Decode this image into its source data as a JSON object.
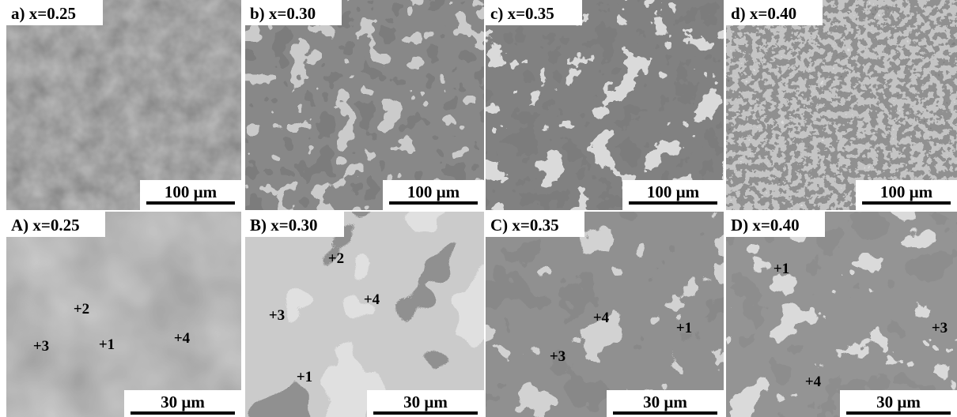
{
  "panels": [
    {
      "label": "a) x=0.25",
      "scale": "100 µm"
    },
    {
      "label": "b) x=0.30",
      "scale": "100 µm"
    },
    {
      "label": "c) x=0.35",
      "scale": "100 µm"
    },
    {
      "label": "d) x=0.40",
      "scale": "100 µm"
    },
    {
      "label": "A) x=0.25",
      "scale": "30 µm",
      "points": [
        "+1",
        "+2",
        "+3",
        "+4"
      ]
    },
    {
      "label": "B) x=0.30",
      "scale": "30 µm",
      "points": [
        "+1",
        "+2",
        "+3",
        "+4"
      ]
    },
    {
      "label": "C) x=0.35",
      "scale": "30 µm",
      "points": [
        "+1",
        "+3",
        "+4"
      ]
    },
    {
      "label": "D) x=0.40",
      "scale": "30 µm",
      "points": [
        "+1",
        "+3",
        "+4"
      ]
    }
  ]
}
